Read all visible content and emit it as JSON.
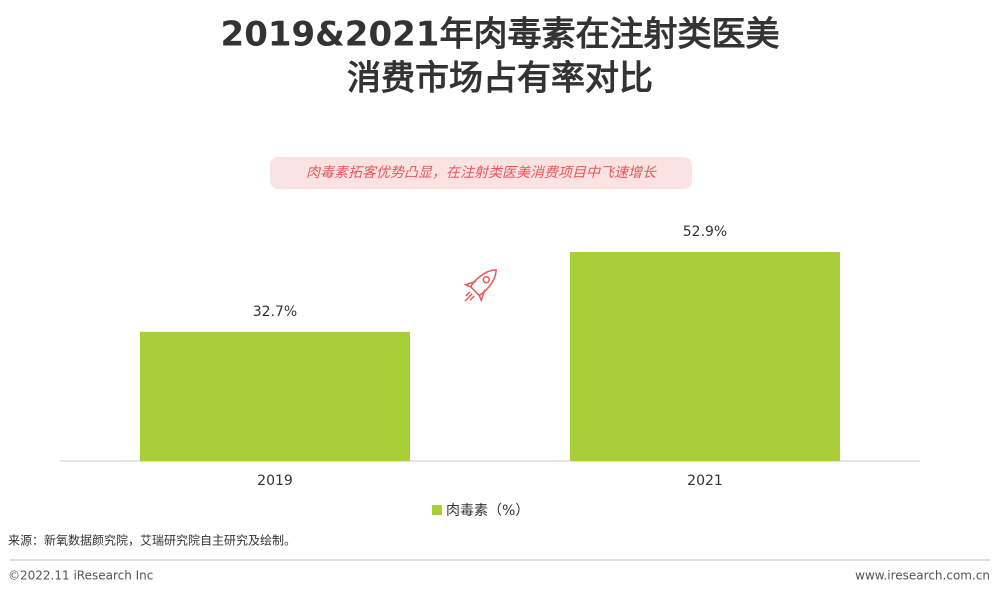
{
  "chart_data": {
    "type": "bar",
    "title": [
      "2019&2021年肉毒素在注射类医美",
      "消费市场占有率对比"
    ],
    "subtitle": "肉毒素拓客优势凸显，在注射类医美消费项目中飞速增长",
    "categories": [
      "2019",
      "2021"
    ],
    "series": [
      {
        "name": "肉毒素（%）",
        "color": "#a9cf38",
        "values": [
          32.7,
          52.9
        ],
        "value_labels": [
          "32.7%",
          "52.9%"
        ]
      }
    ],
    "ylim": [
      0,
      60
    ],
    "source": "来源：新氧数据颜究院，艾瑞研究院自主研究及绘制。",
    "copyright": "©2022.11 iResearch Inc",
    "website": "www.iresearch.com.cn"
  }
}
